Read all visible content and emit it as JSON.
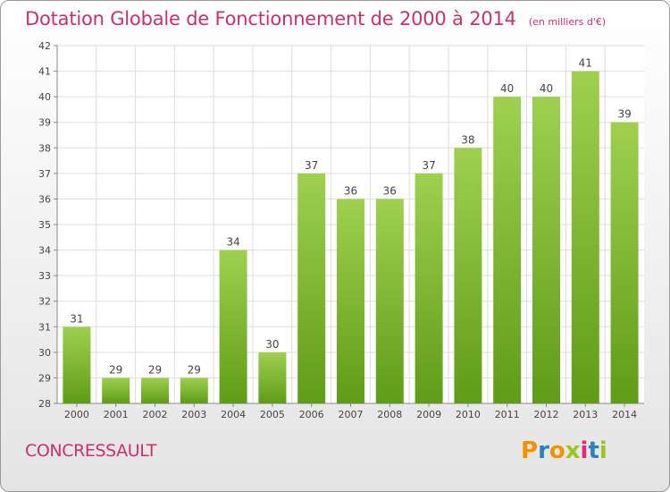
{
  "header": {
    "title": "Dotation Globale de Fonctionnement de 2000 à 2014",
    "unit": "(en milliers d'€)"
  },
  "footer": {
    "place": "CONCRESSAULT",
    "brand": "Proxiti"
  },
  "colors": {
    "title": "#c8316b",
    "bar_top": "#9fd050",
    "bar_bottom": "#5f9c17",
    "brand_letters": [
      "#f39200",
      "#2a7fc3",
      "#f39200",
      "#9dc41f",
      "#e5287b",
      "#2a7fc3",
      "#9dc41f"
    ]
  },
  "chart_data": {
    "type": "bar",
    "title": "Dotation Globale de Fonctionnement de 2000 à 2014",
    "subtitle": "(en milliers d'€)",
    "xlabel": "",
    "ylabel": "",
    "categories": [
      "2000",
      "2001",
      "2002",
      "2003",
      "2004",
      "2005",
      "2006",
      "2007",
      "2008",
      "2009",
      "2010",
      "2011",
      "2012",
      "2013",
      "2014"
    ],
    "values": [
      31,
      29,
      29,
      29,
      34,
      30,
      37,
      36,
      36,
      37,
      38,
      40,
      40,
      41,
      39
    ],
    "ylim": [
      28,
      42
    ],
    "yticks": [
      28,
      29,
      30,
      31,
      32,
      33,
      34,
      35,
      36,
      37,
      38,
      39,
      40,
      41,
      42
    ],
    "grid": true,
    "legend": "none"
  }
}
